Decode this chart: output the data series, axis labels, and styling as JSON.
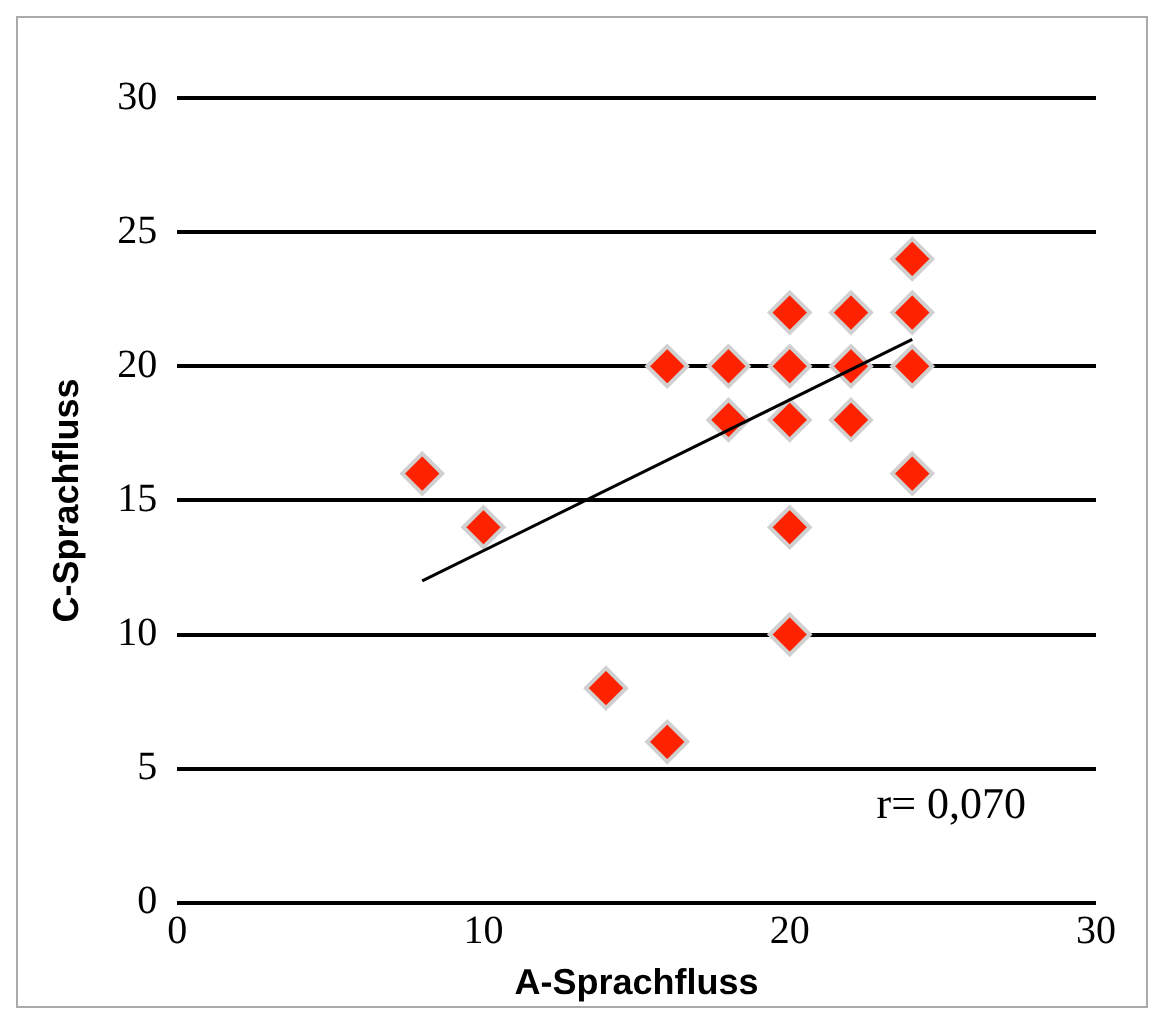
{
  "chart_data": {
    "type": "scatter",
    "xlabel": "A-Sprachfluss",
    "ylabel": "C-Sprachfluss",
    "xlim": [
      0,
      30
    ],
    "xticks": [
      0,
      10,
      20,
      30
    ],
    "ylim": [
      0,
      30
    ],
    "yticks": [
      0,
      5,
      10,
      15,
      20,
      25,
      30
    ],
    "grid": "y",
    "legend": false,
    "series": [
      {
        "marker": "diamond",
        "color": "#ff2200",
        "x": [
          8,
          10,
          14,
          16,
          16,
          18,
          18,
          20,
          20,
          20,
          20,
          20,
          22,
          22,
          22,
          24,
          24,
          24,
          24
        ],
        "values": [
          16,
          14,
          8,
          6,
          20,
          20,
          18,
          22,
          20,
          18,
          14,
          10,
          22,
          20,
          18,
          24,
          22,
          20,
          16
        ]
      },
      {
        "type": "line",
        "marker": "none",
        "color": "#000000",
        "x": [
          8,
          24
        ],
        "values": [
          12,
          21
        ]
      }
    ],
    "annotations": [
      "r= 0,070"
    ]
  }
}
